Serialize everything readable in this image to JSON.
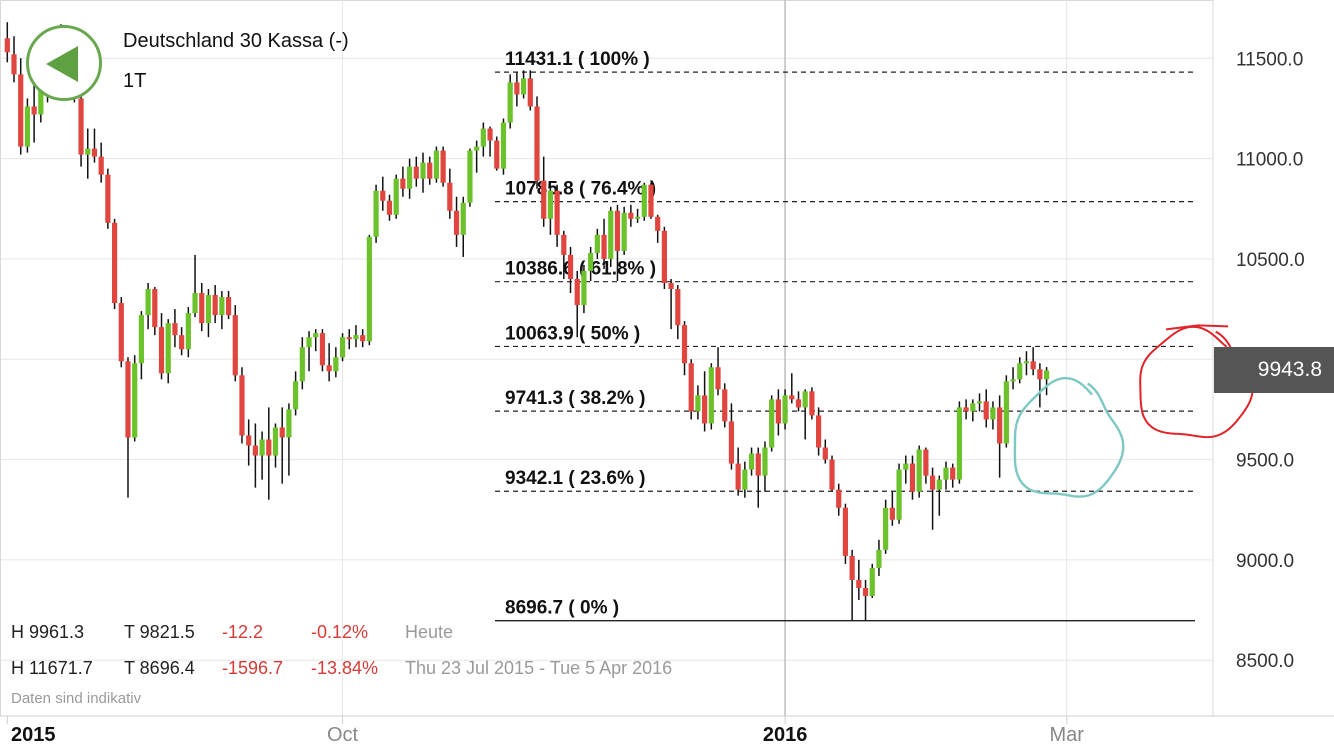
{
  "instrument": {
    "name": "Deutschland 30 Kassa (-)",
    "period": "1T"
  },
  "current_price": "9943.8",
  "stats": {
    "today": {
      "high": "H 9961.3",
      "low": "T 9821.5",
      "change": "-12.2",
      "change_pct": "-0.12%",
      "label": "Heute"
    },
    "range": {
      "high": "H 11671.7",
      "low": "T 8696.4",
      "change": "-1596.7",
      "change_pct": "-13.84%",
      "label": "Thu 23 Jul 2015 - Tue 5 Apr 2016"
    }
  },
  "disclaimer": "Daten sind indikativ",
  "colors": {
    "up": "#6cc22a",
    "down": "#e0463f",
    "grid": "#e6e6e6",
    "badge": "#555555",
    "red_circle": "#e0242a",
    "teal_circle": "#7ec8c4",
    "back_button": "#5fa043"
  },
  "icons": {
    "back": "back-arrow-icon"
  },
  "chart_data": {
    "type": "candlestick",
    "title": "Deutschland 30 Kassa (-)",
    "interval": "1T",
    "ylim": [
      8250,
      11850
    ],
    "y_ticks": [
      11500.0,
      11000.0,
      10500.0,
      10000.0,
      9500.0,
      9000.0,
      8500.0
    ],
    "y_tick_labels": [
      "11500.0",
      "11000.0",
      "10500.0",
      "",
      "9500.0",
      "9000.0",
      "8500.0"
    ],
    "x_tick_labels": [
      {
        "label": "2015",
        "bold": true,
        "date": "2015-07-23"
      },
      {
        "label": "Oct",
        "bold": false,
        "date": "2015-10-01"
      },
      {
        "label": "2016",
        "bold": true,
        "date": "2016-01-01"
      },
      {
        "label": "Mar",
        "bold": false,
        "date": "2016-03-01"
      }
    ],
    "grid": true,
    "last_price": 9943.8,
    "fibonacci": [
      {
        "label": "11431.1 ( 100% )",
        "value": 11431.1,
        "style": "dashed"
      },
      {
        "label": "10785.8 ( 76.4% )",
        "value": 10785.8,
        "style": "dashed"
      },
      {
        "label": "10386.6 ( 61.8% )",
        "value": 10386.6,
        "style": "dashed"
      },
      {
        "label": "10063.9 ( 50% )",
        "value": 10063.9,
        "style": "dashed"
      },
      {
        "label": "9741.3 ( 38.2% )",
        "value": 9741.3,
        "style": "dashed"
      },
      {
        "label": "9342.1 ( 23.6% )",
        "value": 9342.1,
        "style": "dashed"
      },
      {
        "label": "8696.7 ( 0% )",
        "value": 8696.7,
        "style": "solid"
      }
    ],
    "annotations": [
      {
        "type": "hand-drawn-circle",
        "color": "red",
        "center_value": 9870,
        "date": "2016-03-28"
      },
      {
        "type": "hand-drawn-circle",
        "color": "teal",
        "center_value": 9590,
        "date": "2016-03-01"
      }
    ],
    "candles": [
      {
        "o": 11600,
        "h": 11680,
        "l": 11480,
        "c": 11530
      },
      {
        "o": 11520,
        "h": 11610,
        "l": 11380,
        "c": 11420
      },
      {
        "o": 11420,
        "h": 11500,
        "l": 11020,
        "c": 11060
      },
      {
        "o": 11060,
        "h": 11300,
        "l": 11030,
        "c": 11260
      },
      {
        "o": 11260,
        "h": 11380,
        "l": 11080,
        "c": 11220
      },
      {
        "o": 11220,
        "h": 11400,
        "l": 11180,
        "c": 11340
      },
      {
        "o": 11340,
        "h": 11480,
        "l": 11280,
        "c": 11460
      },
      {
        "o": 11460,
        "h": 11650,
        "l": 11420,
        "c": 11600
      },
      {
        "o": 11600,
        "h": 11670,
        "l": 11520,
        "c": 11560
      },
      {
        "o": 11560,
        "h": 11620,
        "l": 11430,
        "c": 11470
      },
      {
        "o": 11470,
        "h": 11560,
        "l": 11280,
        "c": 11300
      },
      {
        "o": 11300,
        "h": 11380,
        "l": 10960,
        "c": 11020
      },
      {
        "o": 11020,
        "h": 11150,
        "l": 10900,
        "c": 11050
      },
      {
        "o": 11050,
        "h": 11150,
        "l": 10980,
        "c": 11010
      },
      {
        "o": 11010,
        "h": 11080,
        "l": 10880,
        "c": 10920
      },
      {
        "o": 10920,
        "h": 10950,
        "l": 10650,
        "c": 10680
      },
      {
        "o": 10680,
        "h": 10700,
        "l": 10250,
        "c": 10280
      },
      {
        "o": 10280,
        "h": 10310,
        "l": 9960,
        "c": 9990
      },
      {
        "o": 9990,
        "h": 10010,
        "l": 9310,
        "c": 9610
      },
      {
        "o": 9610,
        "h": 10020,
        "l": 9590,
        "c": 9980
      },
      {
        "o": 9980,
        "h": 10240,
        "l": 9900,
        "c": 10220
      },
      {
        "o": 10220,
        "h": 10380,
        "l": 10150,
        "c": 10350
      },
      {
        "o": 10350,
        "h": 10360,
        "l": 10120,
        "c": 10160
      },
      {
        "o": 10160,
        "h": 10230,
        "l": 9900,
        "c": 9930
      },
      {
        "o": 9930,
        "h": 10200,
        "l": 9880,
        "c": 10180
      },
      {
        "o": 10180,
        "h": 10250,
        "l": 10060,
        "c": 10120
      },
      {
        "o": 10120,
        "h": 10160,
        "l": 10020,
        "c": 10050
      },
      {
        "o": 10050,
        "h": 10260,
        "l": 10010,
        "c": 10230
      },
      {
        "o": 10230,
        "h": 10520,
        "l": 10210,
        "c": 10330
      },
      {
        "o": 10330,
        "h": 10380,
        "l": 10140,
        "c": 10180
      },
      {
        "o": 10180,
        "h": 10350,
        "l": 10110,
        "c": 10320
      },
      {
        "o": 10320,
        "h": 10370,
        "l": 10180,
        "c": 10220
      },
      {
        "o": 10220,
        "h": 10340,
        "l": 10150,
        "c": 10310
      },
      {
        "o": 10310,
        "h": 10340,
        "l": 10200,
        "c": 10220
      },
      {
        "o": 10220,
        "h": 10270,
        "l": 9890,
        "c": 9920
      },
      {
        "o": 9920,
        "h": 9960,
        "l": 9580,
        "c": 9620
      },
      {
        "o": 9620,
        "h": 9700,
        "l": 9470,
        "c": 9570
      },
      {
        "o": 9570,
        "h": 9680,
        "l": 9360,
        "c": 9520
      },
      {
        "o": 9520,
        "h": 9640,
        "l": 9400,
        "c": 9600
      },
      {
        "o": 9600,
        "h": 9760,
        "l": 9300,
        "c": 9520
      },
      {
        "o": 9520,
        "h": 9680,
        "l": 9460,
        "c": 9660
      },
      {
        "o": 9660,
        "h": 9760,
        "l": 9380,
        "c": 9610
      },
      {
        "o": 9610,
        "h": 9780,
        "l": 9420,
        "c": 9750
      },
      {
        "o": 9750,
        "h": 9940,
        "l": 9720,
        "c": 9890
      },
      {
        "o": 9890,
        "h": 10110,
        "l": 9850,
        "c": 10060
      },
      {
        "o": 10060,
        "h": 10140,
        "l": 9940,
        "c": 10110
      },
      {
        "o": 10110,
        "h": 10150,
        "l": 10040,
        "c": 10130
      },
      {
        "o": 10130,
        "h": 10150,
        "l": 9940,
        "c": 9970
      },
      {
        "o": 9970,
        "h": 10080,
        "l": 9890,
        "c": 9940
      },
      {
        "o": 9940,
        "h": 10060,
        "l": 9910,
        "c": 10010
      },
      {
        "o": 10010,
        "h": 10130,
        "l": 9990,
        "c": 10110
      },
      {
        "o": 10110,
        "h": 10150,
        "l": 10050,
        "c": 10100
      },
      {
        "o": 10100,
        "h": 10170,
        "l": 10060,
        "c": 10120
      },
      {
        "o": 10120,
        "h": 10150,
        "l": 10060,
        "c": 10090
      },
      {
        "o": 10090,
        "h": 10620,
        "l": 10070,
        "c": 10610
      },
      {
        "o": 10610,
        "h": 10870,
        "l": 10580,
        "c": 10840
      },
      {
        "o": 10840,
        "h": 10910,
        "l": 10740,
        "c": 10790
      },
      {
        "o": 10790,
        "h": 10820,
        "l": 10690,
        "c": 10720
      },
      {
        "o": 10720,
        "h": 10920,
        "l": 10700,
        "c": 10900
      },
      {
        "o": 10900,
        "h": 10960,
        "l": 10810,
        "c": 10850
      },
      {
        "o": 10850,
        "h": 11000,
        "l": 10800,
        "c": 10960
      },
      {
        "o": 10960,
        "h": 11010,
        "l": 10860,
        "c": 10900
      },
      {
        "o": 10900,
        "h": 11030,
        "l": 10830,
        "c": 10980
      },
      {
        "o": 10980,
        "h": 11010,
        "l": 10870,
        "c": 10900
      },
      {
        "o": 10900,
        "h": 11060,
        "l": 10880,
        "c": 11040
      },
      {
        "o": 11040,
        "h": 11060,
        "l": 10860,
        "c": 10880
      },
      {
        "o": 10880,
        "h": 10950,
        "l": 10700,
        "c": 10740
      },
      {
        "o": 10740,
        "h": 10810,
        "l": 10560,
        "c": 10620
      },
      {
        "o": 10620,
        "h": 10810,
        "l": 10510,
        "c": 10780
      },
      {
        "o": 10780,
        "h": 11050,
        "l": 10760,
        "c": 11040
      },
      {
        "o": 11040,
        "h": 11090,
        "l": 10930,
        "c": 11060
      },
      {
        "o": 11060,
        "h": 11180,
        "l": 11010,
        "c": 11150
      },
      {
        "o": 11150,
        "h": 11160,
        "l": 11010,
        "c": 11090
      },
      {
        "o": 11090,
        "h": 11110,
        "l": 10940,
        "c": 10950
      },
      {
        "o": 10950,
        "h": 11200,
        "l": 10920,
        "c": 11180
      },
      {
        "o": 11180,
        "h": 11420,
        "l": 11150,
        "c": 11380
      },
      {
        "o": 11380,
        "h": 11430,
        "l": 11260,
        "c": 11320
      },
      {
        "o": 11320,
        "h": 11440,
        "l": 11300,
        "c": 11400
      },
      {
        "o": 11400,
        "h": 11440,
        "l": 11240,
        "c": 11260
      },
      {
        "o": 11260,
        "h": 11310,
        "l": 10850,
        "c": 10890
      },
      {
        "o": 10890,
        "h": 11010,
        "l": 10660,
        "c": 10700
      },
      {
        "o": 10700,
        "h": 10870,
        "l": 10620,
        "c": 10840
      },
      {
        "o": 10840,
        "h": 10870,
        "l": 10560,
        "c": 10620
      },
      {
        "o": 10620,
        "h": 10640,
        "l": 10400,
        "c": 10520
      },
      {
        "o": 10520,
        "h": 10560,
        "l": 10330,
        "c": 10400
      },
      {
        "o": 10400,
        "h": 10440,
        "l": 10110,
        "c": 10270
      },
      {
        "o": 10270,
        "h": 10470,
        "l": 10230,
        "c": 10440
      },
      {
        "o": 10440,
        "h": 10560,
        "l": 10390,
        "c": 10530
      },
      {
        "o": 10530,
        "h": 10650,
        "l": 10500,
        "c": 10620
      },
      {
        "o": 10620,
        "h": 10700,
        "l": 10450,
        "c": 10500
      },
      {
        "o": 10500,
        "h": 10760,
        "l": 10460,
        "c": 10740
      },
      {
        "o": 10740,
        "h": 10770,
        "l": 10390,
        "c": 10540
      },
      {
        "o": 10540,
        "h": 10760,
        "l": 10520,
        "c": 10730
      },
      {
        "o": 10730,
        "h": 10770,
        "l": 10660,
        "c": 10700
      },
      {
        "o": 10700,
        "h": 10750,
        "l": 10680,
        "c": 10710
      },
      {
        "o": 10710,
        "h": 10880,
        "l": 10690,
        "c": 10870
      },
      {
        "o": 10870,
        "h": 10880,
        "l": 10700,
        "c": 10710
      },
      {
        "o": 10710,
        "h": 10720,
        "l": 10580,
        "c": 10640
      },
      {
        "o": 10640,
        "h": 10660,
        "l": 10350,
        "c": 10380
      },
      {
        "o": 10380,
        "h": 10400,
        "l": 10150,
        "c": 10350
      },
      {
        "o": 10350,
        "h": 10370,
        "l": 10100,
        "c": 10170
      },
      {
        "o": 10170,
        "h": 10190,
        "l": 9920,
        "c": 9980
      },
      {
        "o": 9980,
        "h": 10000,
        "l": 9700,
        "c": 9740
      },
      {
        "o": 9740,
        "h": 9870,
        "l": 9700,
        "c": 9820
      },
      {
        "o": 9820,
        "h": 9940,
        "l": 9640,
        "c": 9680
      },
      {
        "o": 9680,
        "h": 9980,
        "l": 9650,
        "c": 9960
      },
      {
        "o": 9960,
        "h": 10060,
        "l": 9820,
        "c": 9850
      },
      {
        "o": 9850,
        "h": 9880,
        "l": 9660,
        "c": 9690
      },
      {
        "o": 9690,
        "h": 9780,
        "l": 9450,
        "c": 9480
      },
      {
        "o": 9480,
        "h": 9560,
        "l": 9320,
        "c": 9350
      },
      {
        "o": 9350,
        "h": 9490,
        "l": 9310,
        "c": 9450
      },
      {
        "o": 9450,
        "h": 9560,
        "l": 9420,
        "c": 9530
      },
      {
        "o": 9530,
        "h": 9560,
        "l": 9260,
        "c": 9420
      },
      {
        "o": 9420,
        "h": 9590,
        "l": 9340,
        "c": 9560
      },
      {
        "o": 9560,
        "h": 9820,
        "l": 9540,
        "c": 9800
      },
      {
        "o": 9800,
        "h": 9850,
        "l": 9620,
        "c": 9680
      },
      {
        "o": 9680,
        "h": 9850,
        "l": 9650,
        "c": 9820
      },
      {
        "o": 9820,
        "h": 9930,
        "l": 9780,
        "c": 9800
      },
      {
        "o": 9800,
        "h": 9840,
        "l": 9740,
        "c": 9760
      },
      {
        "o": 9760,
        "h": 9850,
        "l": 9600,
        "c": 9840
      },
      {
        "o": 9840,
        "h": 9860,
        "l": 9700,
        "c": 9720
      },
      {
        "o": 9720,
        "h": 9760,
        "l": 9520,
        "c": 9560
      },
      {
        "o": 9560,
        "h": 9600,
        "l": 9480,
        "c": 9500
      },
      {
        "o": 9500,
        "h": 9520,
        "l": 9340,
        "c": 9350
      },
      {
        "o": 9350,
        "h": 9380,
        "l": 9220,
        "c": 9260
      },
      {
        "o": 9260,
        "h": 9280,
        "l": 8980,
        "c": 9020
      },
      {
        "o": 9020,
        "h": 9050,
        "l": 8700,
        "c": 8900
      },
      {
        "o": 8900,
        "h": 9000,
        "l": 8800,
        "c": 8860
      },
      {
        "o": 8860,
        "h": 8900,
        "l": 8696,
        "c": 8820
      },
      {
        "o": 8820,
        "h": 8980,
        "l": 8810,
        "c": 8960
      },
      {
        "o": 8960,
        "h": 9100,
        "l": 8920,
        "c": 9050
      },
      {
        "o": 9050,
        "h": 9300,
        "l": 9030,
        "c": 9260
      },
      {
        "o": 9260,
        "h": 9340,
        "l": 9170,
        "c": 9200
      },
      {
        "o": 9200,
        "h": 9480,
        "l": 9180,
        "c": 9450
      },
      {
        "o": 9450,
        "h": 9520,
        "l": 9380,
        "c": 9480
      },
      {
        "o": 9480,
        "h": 9520,
        "l": 9300,
        "c": 9340
      },
      {
        "o": 9340,
        "h": 9570,
        "l": 9310,
        "c": 9550
      },
      {
        "o": 9550,
        "h": 9560,
        "l": 9380,
        "c": 9420
      },
      {
        "o": 9420,
        "h": 9460,
        "l": 9150,
        "c": 9350
      },
      {
        "o": 9350,
        "h": 9420,
        "l": 9220,
        "c": 9400
      },
      {
        "o": 9400,
        "h": 9490,
        "l": 9350,
        "c": 9460
      },
      {
        "o": 9460,
        "h": 9480,
        "l": 9360,
        "c": 9400
      },
      {
        "o": 9400,
        "h": 9790,
        "l": 9380,
        "c": 9760
      },
      {
        "o": 9760,
        "h": 9800,
        "l": 9700,
        "c": 9740
      },
      {
        "o": 9740,
        "h": 9800,
        "l": 9690,
        "c": 9780
      },
      {
        "o": 9780,
        "h": 9830,
        "l": 9740,
        "c": 9790
      },
      {
        "o": 9790,
        "h": 9850,
        "l": 9660,
        "c": 9700
      },
      {
        "o": 9700,
        "h": 9790,
        "l": 9650,
        "c": 9760
      },
      {
        "o": 9760,
        "h": 9820,
        "l": 9410,
        "c": 9580
      },
      {
        "o": 9580,
        "h": 9920,
        "l": 9560,
        "c": 9890
      },
      {
        "o": 9890,
        "h": 9960,
        "l": 9850,
        "c": 9900
      },
      {
        "o": 9900,
        "h": 10010,
        "l": 9880,
        "c": 9980
      },
      {
        "o": 9980,
        "h": 10040,
        "l": 9920,
        "c": 9990
      },
      {
        "o": 9990,
        "h": 10060,
        "l": 9920,
        "c": 9950
      },
      {
        "o": 9950,
        "h": 9980,
        "l": 9760,
        "c": 9900
      },
      {
        "o": 9900,
        "h": 9961,
        "l": 9821,
        "c": 9944
      }
    ]
  }
}
